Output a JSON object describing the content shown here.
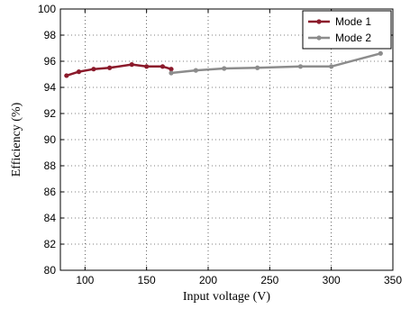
{
  "chart_data": {
    "type": "line",
    "title": "",
    "xlabel": "Input voltage (V)",
    "ylabel": "Efficiency (%)",
    "xlim": [
      80,
      350
    ],
    "ylim": [
      80,
      100
    ],
    "x_ticks": [
      100,
      150,
      200,
      250,
      300,
      350
    ],
    "y_ticks": [
      80,
      82,
      84,
      86,
      88,
      90,
      92,
      94,
      96,
      98,
      100
    ],
    "grid": true,
    "grid_style": "dotted",
    "legend_position": "top-right",
    "series": [
      {
        "name": "Mode 1",
        "color": "#8b1a2b",
        "marker": "circle",
        "x": [
          85,
          95,
          107,
          120,
          138,
          150,
          163,
          170
        ],
        "y": [
          94.9,
          95.2,
          95.4,
          95.5,
          95.75,
          95.6,
          95.6,
          95.4
        ]
      },
      {
        "name": "Mode 2",
        "color": "#8c8c8c",
        "marker": "circle",
        "x": [
          170,
          190,
          213,
          240,
          275,
          300,
          340
        ],
        "y": [
          95.1,
          95.3,
          95.45,
          95.5,
          95.6,
          95.6,
          96.6
        ]
      }
    ]
  }
}
